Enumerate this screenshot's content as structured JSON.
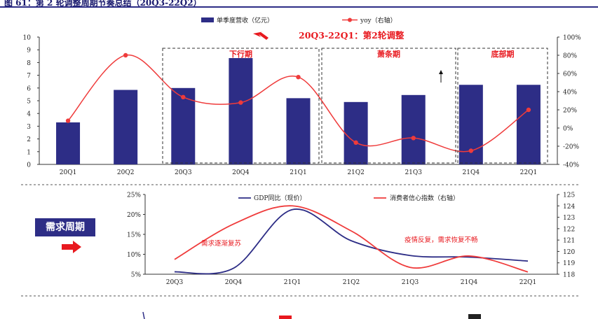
{
  "figure_title": "图 61：第 2 轮调整周期节奏总结（20Q3-22Q2）",
  "side_label": "需求周期",
  "colors": {
    "bar": "#2d2d86",
    "yoy": "#ef3b3b",
    "gdp": "#2d2d86",
    "confidence": "#ef3b3b",
    "annotation_red": "#e8191f",
    "frame": "#2d2d86"
  },
  "chart_data": [
    {
      "type": "bar",
      "categories": [
        "20Q1",
        "20Q2",
        "20Q3",
        "20Q4",
        "21Q1",
        "21Q2",
        "21Q3",
        "21Q4",
        "22Q1"
      ],
      "series": [
        {
          "name": "单季度营收（亿元）",
          "type": "bar",
          "axis": "left",
          "values": [
            3.3,
            5.85,
            6.0,
            8.35,
            5.2,
            4.9,
            5.45,
            6.25,
            6.25
          ]
        },
        {
          "name": "yoy（右轴）",
          "type": "line",
          "axis": "right",
          "values": [
            8,
            80,
            34,
            28,
            56,
            -16,
            -11,
            -25,
            20
          ]
        }
      ],
      "ylim": [
        0,
        10
      ],
      "yticks": [
        "0",
        "1",
        "2",
        "3",
        "4",
        "5",
        "6",
        "7",
        "8",
        "9",
        "10"
      ],
      "y2lim": [
        -40,
        100
      ],
      "y2ticks": [
        "-40%",
        "-20%",
        "0%",
        "20%",
        "40%",
        "60%",
        "80%",
        "100%"
      ],
      "annotations": {
        "headline": "20Q3-22Q1：第2轮调整",
        "phases": [
          "下行期",
          "萧条期",
          "底部期"
        ]
      }
    },
    {
      "type": "line",
      "categories": [
        "20Q3",
        "20Q4",
        "21Q1",
        "21Q2",
        "21Q3",
        "21Q4",
        "22Q1"
      ],
      "series": [
        {
          "name": "GDP同比（现价）",
          "axis": "left",
          "values": [
            5.6,
            6.5,
            21.2,
            13.4,
            9.7,
            9.3,
            8.3
          ]
        },
        {
          "name": "消费者信心指数（右轴）",
          "axis": "right",
          "values": [
            119.3,
            122.4,
            124.0,
            121.8,
            118.6,
            119.6,
            118.2
          ]
        }
      ],
      "ylim": [
        5,
        25
      ],
      "yticks": [
        "5%",
        "10%",
        "15%",
        "20%",
        "25%"
      ],
      "y2lim": [
        118,
        125
      ],
      "y2ticks": [
        "118",
        "119",
        "120",
        "121",
        "122",
        "123",
        "124",
        "125"
      ],
      "annotations": [
        "需求逐渐复苏",
        "疫情反复，需求恢复不畅"
      ]
    }
  ]
}
